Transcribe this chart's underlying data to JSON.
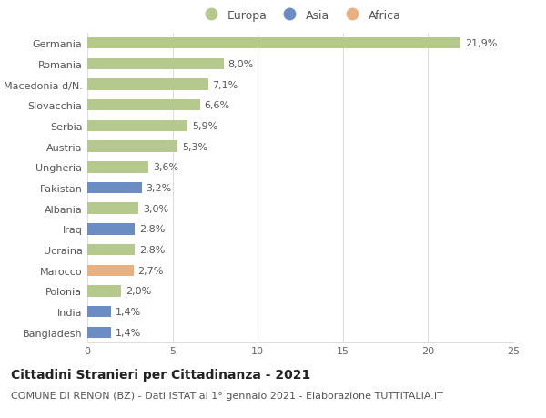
{
  "countries": [
    "Germania",
    "Romania",
    "Macedonia d/N.",
    "Slovacchia",
    "Serbia",
    "Austria",
    "Ungheria",
    "Pakistan",
    "Albania",
    "Iraq",
    "Ucraina",
    "Marocco",
    "Polonia",
    "India",
    "Bangladesh"
  ],
  "values": [
    21.9,
    8.0,
    7.1,
    6.6,
    5.9,
    5.3,
    3.6,
    3.2,
    3.0,
    2.8,
    2.8,
    2.7,
    2.0,
    1.4,
    1.4
  ],
  "labels": [
    "21,9%",
    "8,0%",
    "7,1%",
    "6,6%",
    "5,9%",
    "5,3%",
    "3,6%",
    "3,2%",
    "3,0%",
    "2,8%",
    "2,8%",
    "2,7%",
    "2,0%",
    "1,4%",
    "1,4%"
  ],
  "continents": [
    "Europa",
    "Europa",
    "Europa",
    "Europa",
    "Europa",
    "Europa",
    "Europa",
    "Asia",
    "Europa",
    "Asia",
    "Europa",
    "Africa",
    "Europa",
    "Asia",
    "Asia"
  ],
  "colors": {
    "Europa": "#b5c98e",
    "Asia": "#6b8dc4",
    "Africa": "#e8b080"
  },
  "legend_order": [
    "Europa",
    "Asia",
    "Africa"
  ],
  "xlim": [
    0,
    25
  ],
  "xticks": [
    0,
    5,
    10,
    15,
    20,
    25
  ],
  "title": "Cittadini Stranieri per Cittadinanza - 2021",
  "subtitle": "COMUNE DI RENON (BZ) - Dati ISTAT al 1° gennaio 2021 - Elaborazione TUTTITALIA.IT",
  "bg_color": "#ffffff",
  "grid_color": "#dddddd",
  "bar_height": 0.55,
  "title_fontsize": 10,
  "subtitle_fontsize": 8,
  "label_fontsize": 8,
  "tick_fontsize": 8,
  "legend_fontsize": 9
}
